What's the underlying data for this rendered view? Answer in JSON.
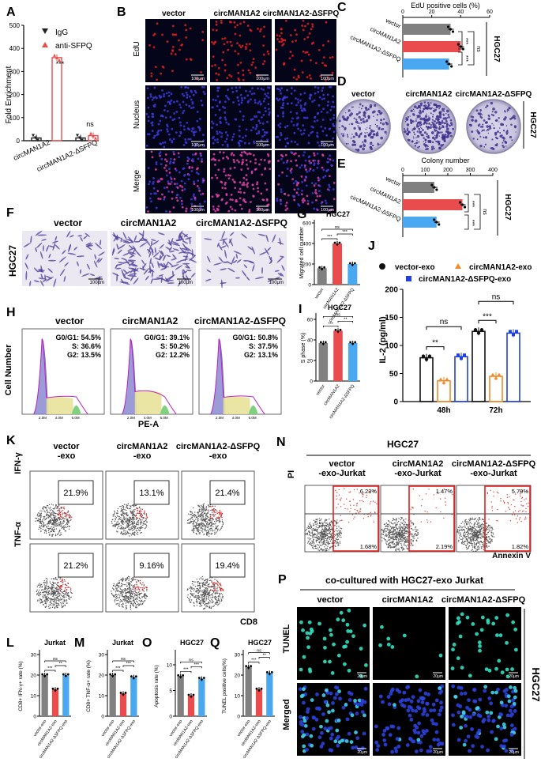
{
  "A": {
    "letter": "A",
    "ylabel": "Fold Enrichment",
    "yticks": [
      "0",
      "100",
      "200",
      "300",
      "400",
      "500"
    ],
    "legend": [
      {
        "name": "IgG",
        "color": "#222222"
      },
      {
        "name": "anti-SFPQ",
        "color": "#e84c4c"
      }
    ],
    "categories": [
      "circMAN1A2",
      "circMAN1A2-ΔSFPQ"
    ],
    "sig": [
      "***",
      "ns"
    ]
  },
  "B": {
    "letter": "B",
    "cols": [
      "vector",
      "circMAN1A2",
      "circMAN1A2-ΔSFPQ"
    ],
    "rows": [
      "EdU",
      "Nucleus",
      "Merge"
    ],
    "scale": "100μm"
  },
  "C": {
    "letter": "C",
    "title": "EdU positive cells (%)",
    "ticks": [
      "0",
      "20",
      "40",
      "60"
    ],
    "categories": [
      "vector",
      "circMAN1A2",
      "circMAN1A2-ΔSFPQ"
    ],
    "side": "HGC27",
    "sig": [
      "***",
      "***",
      "ns"
    ]
  },
  "D": {
    "letter": "D",
    "cols": [
      "vector",
      "circMAN1A2",
      "circMAN1A2-ΔSFPQ"
    ],
    "side": "HGC27"
  },
  "E": {
    "letter": "E",
    "title": "Colony number",
    "ticks": [
      "0",
      "100",
      "200",
      "300",
      "400"
    ],
    "categories": [
      "vector",
      "circMAN1A2",
      "circMAN1A2-ΔSFPQ"
    ],
    "side": "HGC27",
    "sig": [
      "***",
      "***",
      "ns"
    ]
  },
  "F": {
    "letter": "F",
    "cols": [
      "vector",
      "circMAN1A2",
      "circMAN1A2-ΔSFPQ"
    ],
    "side": "HGC27",
    "scale": "100μm"
  },
  "G": {
    "letter": "G",
    "title": "HGC27",
    "ylabel": "Migrated cell number",
    "yticks": [
      "0",
      "200",
      "400",
      "600"
    ],
    "categories": [
      "vector",
      "circMAN1A2",
      "circMAN1A2-ΔSFPQ"
    ],
    "sig": [
      "***",
      "***",
      "ns"
    ]
  },
  "H": {
    "letter": "H",
    "cols": [
      "vector",
      "circMAN1A2",
      "circMAN1A2-ΔSFPQ"
    ],
    "stats": [
      [
        "G0/G1: 54.5%",
        "S: 36.6%",
        "G2: 13.5%"
      ],
      [
        "G0/G1: 39.1%",
        "S: 50.2%",
        "G2: 12.2%"
      ],
      [
        "G0/G1: 50.8%",
        "S: 37.5%",
        "G2: 13.1%"
      ]
    ],
    "ylabel": "Cell Number",
    "xlabel": "PE-A",
    "xticks": [
      "2.0M",
      "4.0M",
      "6.0M"
    ]
  },
  "I": {
    "letter": "I",
    "title": "HGC27",
    "ylabel": "S phase (%)",
    "yticks": [
      "0",
      "20",
      "40",
      "60"
    ],
    "categories": [
      "vector",
      "circMAN1A2",
      "circMAN1A2-ΔSFPQ"
    ],
    "sig": [
      "***",
      "**",
      "ns"
    ]
  },
  "J": {
    "letter": "J",
    "legend": [
      {
        "name": "vector-exo",
        "color": "#111111"
      },
      {
        "name": "circMAN1A2-exo",
        "color": "#f28c28"
      },
      {
        "name": "circMAN1A2-ΔSFPQ-exo",
        "color": "#2040e0"
      }
    ],
    "ylabel": "IL-2 (pg/ml)",
    "yticks": [
      "0",
      "50",
      "100",
      "150",
      "200"
    ],
    "groups": [
      "48h",
      "72h"
    ],
    "sig": [
      "**",
      "ns",
      "***",
      "ns"
    ]
  },
  "K": {
    "letter": "K",
    "cols": [
      "vector\n-exo",
      "circMAN1A2\n-exo",
      "circMAN1A2-ΔSFPQ\n-exo"
    ],
    "col_lines": [
      [
        "vector",
        "-exo"
      ],
      [
        "circMAN1A2",
        "-exo"
      ],
      [
        "circMAN1A2-ΔSFPQ",
        "-exo"
      ]
    ],
    "rows": [
      "IFN-γ",
      "TNF-α"
    ],
    "pct": [
      [
        "21.9%",
        "13.1%",
        "21.4%"
      ],
      [
        "21.2%",
        "9.16%",
        "19.4%"
      ]
    ],
    "xlabel": "CD8"
  },
  "N": {
    "letter": "N",
    "title": "HGC27",
    "col_lines": [
      [
        "vector",
        "-exo-Jurkat"
      ],
      [
        "circMAN1A2",
        "-exo-Jurkat"
      ],
      [
        "circMAN1A2-ΔSFPQ",
        "-exo-Jurkat"
      ]
    ],
    "ylabel": "PI",
    "xlabel": "Annexin V",
    "upper": [
      "6.23%",
      "1.47%",
      "5.79%"
    ],
    "lower": [
      "1.68%",
      "2.19%",
      "1.82%"
    ]
  },
  "P": {
    "letter": "P",
    "title": "co-cultured with HGC27-exo Jurkat",
    "cols": [
      "vector",
      "circMAN1A2",
      "circMAN1A2-ΔSFPQ"
    ],
    "rows": [
      "TUNEL",
      "Merged"
    ],
    "side": "HGC27",
    "scale": "20μm"
  },
  "L": {
    "letter": "L",
    "title": "Jurkat",
    "ylabel": "CD8+ IFN-γ+ rate (%)",
    "yticks": [
      "0",
      "10",
      "20",
      "30"
    ],
    "categories": [
      "vector-exo",
      "circMAN1A2-exo",
      "circMAN1A2-ΔSFPQ-exo"
    ],
    "sig": [
      "***",
      "**",
      "ns"
    ]
  },
  "M": {
    "letter": "M",
    "title": "Jurkat",
    "ylabel": "CD8+ TNF-α+ rate (%)",
    "yticks": [
      "0",
      "10",
      "20",
      "30"
    ],
    "categories": [
      "vector-exo",
      "circMAN1A2-exo",
      "circMAN1A2-ΔSFPQ-exo"
    ],
    "sig": [
      "***",
      "***",
      "ns"
    ]
  },
  "O": {
    "letter": "O",
    "title": "HGC27",
    "ylabel": "Apoptosis rate (%)",
    "yticks": [
      "0",
      "5",
      "10"
    ],
    "categories": [
      "vector-exo",
      "circMAN1A2-exo",
      "circMAN1A2-ΔSFPQ-exo"
    ],
    "sig": [
      "***",
      "***",
      "ns"
    ]
  },
  "Q": {
    "letter": "Q",
    "title": "HGC27",
    "ylabel": "TUNEL positive cells(%)",
    "yticks": [
      "0",
      "10",
      "20",
      "30"
    ],
    "categories": [
      "vector-exo",
      "circMAN1A2-exo",
      "circMAN1A2-ΔSFPQ-exo"
    ],
    "sig": [
      "***",
      "**",
      "ns"
    ]
  },
  "colors": {
    "gray": "#808080",
    "red": "#e84c4c",
    "blue": "#4aa8f0",
    "orange": "#f28c28",
    "darkblue": "#2040e0"
  },
  "chart_data": [
    {
      "type": "bar",
      "panel": "A",
      "categories": [
        "circMAN1A2",
        "circMAN1A2-ΔSFPQ"
      ],
      "series": [
        {
          "name": "IgG",
          "values": [
            12,
            12
          ]
        },
        {
          "name": "anti-SFPQ",
          "values": [
            360,
            22
          ]
        }
      ],
      "ylabel": "Fold Enrichment",
      "ylim": [
        0,
        500
      ]
    },
    {
      "type": "bar",
      "panel": "C",
      "categories": [
        "vector",
        "circMAN1A2",
        "circMAN1A2-ΔSFPQ"
      ],
      "values": [
        33,
        40,
        32
      ],
      "xlim": [
        0,
        60
      ]
    },
    {
      "type": "bar",
      "panel": "E",
      "categories": [
        "vector",
        "circMAN1A2",
        "circMAN1A2-ΔSFPQ"
      ],
      "values": [
        140,
        265,
        150
      ],
      "xlim": [
        0,
        400
      ]
    },
    {
      "type": "bar",
      "panel": "G",
      "categories": [
        "vector",
        "circMAN1A2",
        "circMAN1A2-ΔSFPQ"
      ],
      "values": [
        160,
        400,
        200
      ],
      "ylim": [
        0,
        600
      ]
    },
    {
      "type": "bar",
      "panel": "I",
      "categories": [
        "vector",
        "circMAN1A2",
        "circMAN1A2-ΔSFPQ"
      ],
      "values": [
        37,
        49,
        37
      ],
      "ylim": [
        0,
        60
      ]
    },
    {
      "type": "bar",
      "panel": "J",
      "categories": [
        "48h",
        "72h"
      ],
      "series": [
        {
          "name": "vector-exo",
          "values": [
            78,
            125
          ]
        },
        {
          "name": "circMAN1A2-exo",
          "values": [
            37,
            45
          ]
        },
        {
          "name": "circMAN1A2-ΔSFPQ-exo",
          "values": [
            80,
            122
          ]
        }
      ],
      "ylabel": "IL-2 (pg/ml)",
      "ylim": [
        0,
        200
      ]
    },
    {
      "type": "bar",
      "panel": "L",
      "categories": [
        "vector-exo",
        "circMAN1A2-exo",
        "circMAN1A2-ΔSFPQ-exo"
      ],
      "values": [
        20,
        13,
        20
      ],
      "ylim": [
        0,
        30
      ]
    },
    {
      "type": "bar",
      "panel": "M",
      "categories": [
        "vector-exo",
        "circMAN1A2-exo",
        "circMAN1A2-ΔSFPQ-exo"
      ],
      "values": [
        20,
        11,
        19
      ],
      "ylim": [
        0,
        30
      ]
    },
    {
      "type": "bar",
      "panel": "O",
      "categories": [
        "vector-exo",
        "circMAN1A2-exo",
        "circMAN1A2-ΔSFPQ-exo"
      ],
      "values": [
        7.8,
        4,
        7.3
      ],
      "ylim": [
        0,
        12
      ]
    },
    {
      "type": "bar",
      "panel": "Q",
      "categories": [
        "vector-exo",
        "circMAN1A2-exo",
        "circMAN1A2-ΔSFPQ-exo"
      ],
      "values": [
        24,
        13,
        21
      ],
      "ylim": [
        0,
        30
      ]
    }
  ]
}
